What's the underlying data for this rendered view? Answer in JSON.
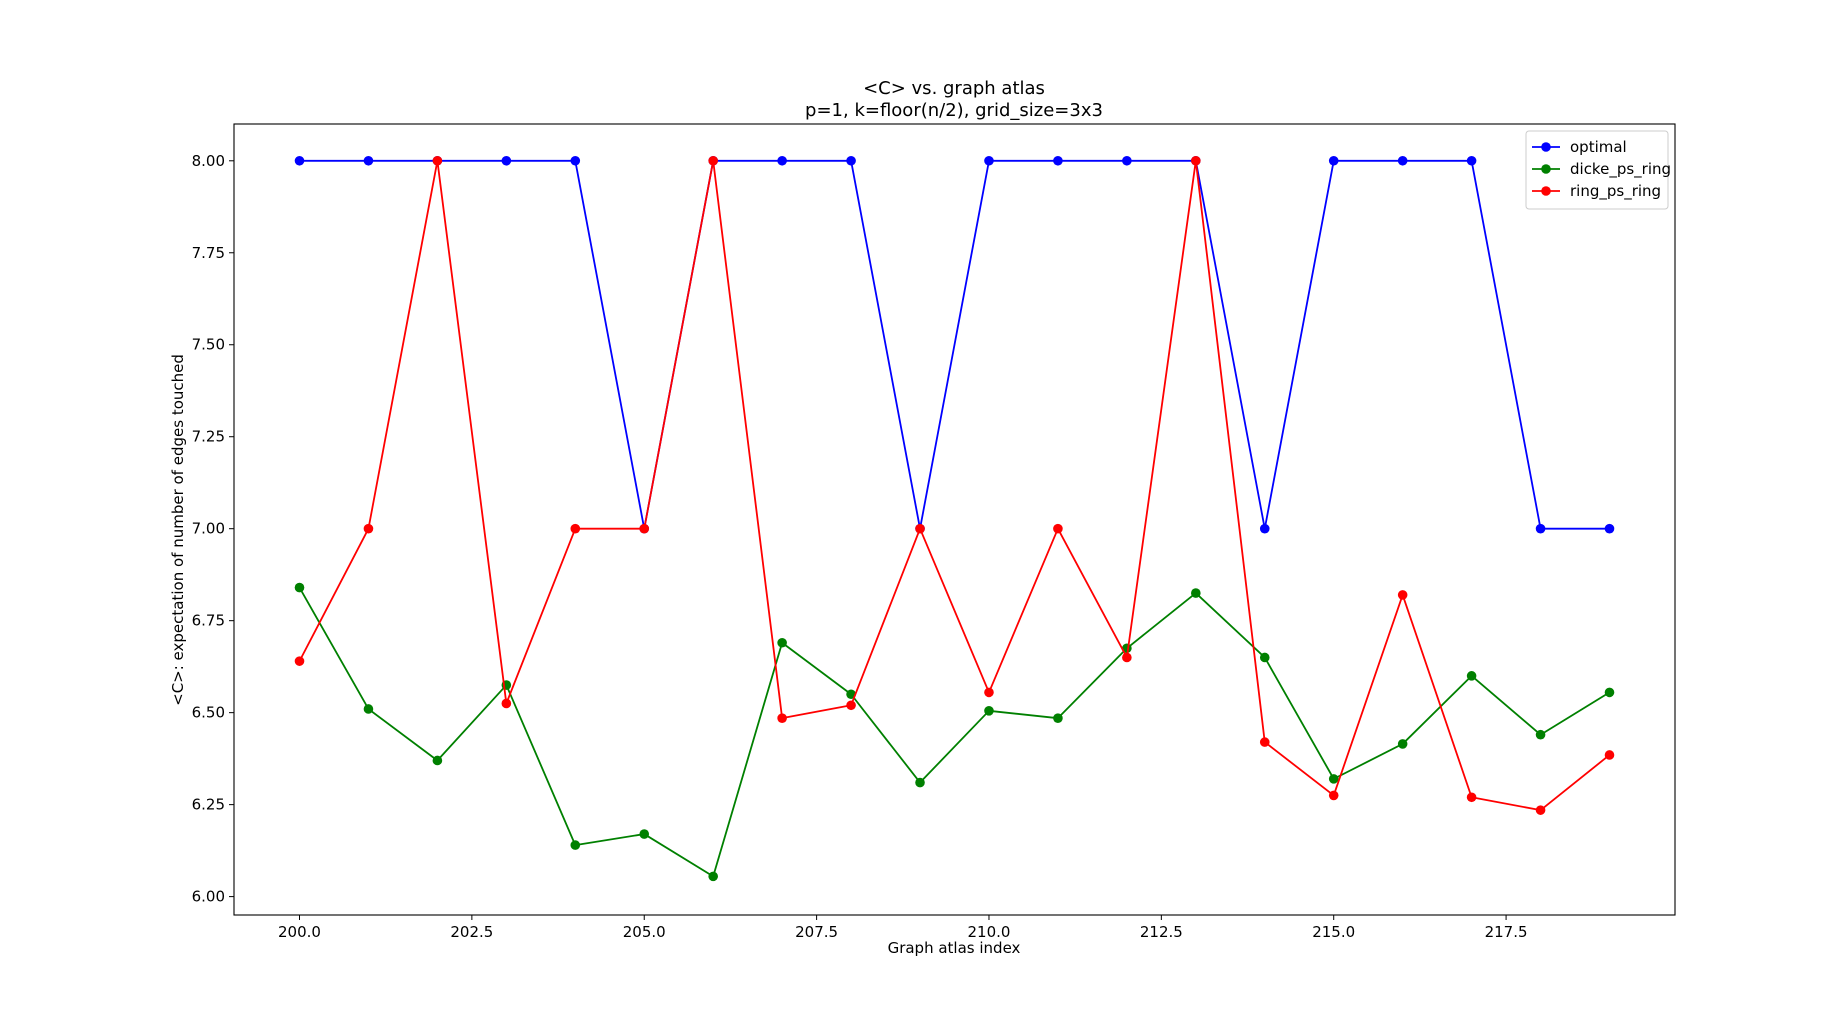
{
  "chart_data": {
    "type": "line",
    "title": "<C> vs. graph atlas",
    "subtitle": "p=1, k=floor(n/2), grid_size=3x3",
    "xlabel": "Graph atlas index",
    "ylabel": "<C>: expectation of number of edges touched",
    "x": [
      200,
      201,
      202,
      203,
      204,
      205,
      206,
      207,
      208,
      209,
      210,
      211,
      212,
      213,
      214,
      215,
      216,
      217,
      218,
      219
    ],
    "xlim": [
      199.05,
      219.95
    ],
    "ylim": [
      5.95,
      8.1
    ],
    "xticks": [
      200.0,
      202.5,
      205.0,
      207.5,
      210.0,
      212.5,
      215.0,
      217.5
    ],
    "xtick_labels": [
      "200.0",
      "202.5",
      "205.0",
      "207.5",
      "210.0",
      "212.5",
      "215.0",
      "217.5"
    ],
    "yticks": [
      6.0,
      6.25,
      6.5,
      6.75,
      7.0,
      7.25,
      7.5,
      7.75,
      8.0
    ],
    "ytick_labels": [
      "6.00",
      "6.25",
      "6.50",
      "6.75",
      "7.00",
      "7.25",
      "7.50",
      "7.75",
      "8.00"
    ],
    "grid": false,
    "legend_position": "top-right",
    "series": [
      {
        "name": "optimal",
        "color": "#0000ff",
        "marker": "circle",
        "values": [
          8,
          8,
          8,
          8,
          8,
          7,
          8,
          8,
          8,
          7,
          8,
          8,
          8,
          8,
          7,
          8,
          8,
          8,
          7,
          7
        ]
      },
      {
        "name": "dicke_ps_ring",
        "color": "#008000",
        "marker": "circle",
        "values": [
          6.84,
          6.51,
          6.37,
          6.575,
          6.14,
          6.17,
          6.055,
          6.69,
          6.55,
          6.31,
          6.505,
          6.485,
          6.675,
          6.825,
          6.65,
          6.32,
          6.415,
          6.6,
          6.44,
          6.555
        ]
      },
      {
        "name": "ring_ps_ring",
        "color": "#ff0000",
        "marker": "circle",
        "values": [
          6.64,
          7.0,
          8.0,
          6.525,
          7.0,
          7.0,
          8.0,
          6.485,
          6.52,
          7.0,
          6.555,
          7.0,
          6.65,
          8.0,
          6.42,
          6.275,
          6.82,
          6.27,
          6.235,
          6.385
        ]
      }
    ]
  }
}
